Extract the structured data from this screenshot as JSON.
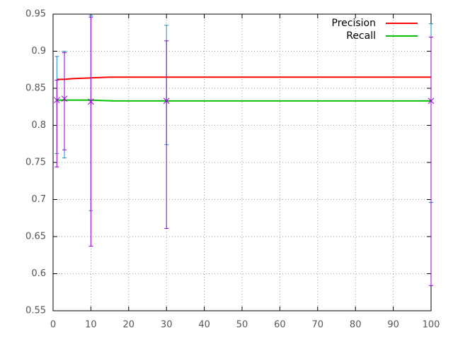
{
  "chart_data": {
    "type": "line",
    "xlim": [
      0,
      100
    ],
    "ylim": [
      0.55,
      0.95
    ],
    "xticks": [
      0,
      10,
      20,
      30,
      40,
      50,
      60,
      70,
      80,
      90,
      100
    ],
    "yticks": [
      0.55,
      0.6,
      0.65,
      0.7,
      0.75,
      0.8,
      0.85,
      0.9,
      0.95
    ],
    "grid": true,
    "legend": "top-right",
    "series": [
      {
        "name": "Precision",
        "color": "#ff0000",
        "x": [
          1,
          3,
          5,
          10,
          15,
          30,
          100
        ],
        "values": [
          0.862,
          0.862,
          0.863,
          0.864,
          0.865,
          0.865,
          0.865
        ],
        "errorbars": {
          "color": "#1e8cc8",
          "x": [
            1,
            3,
            10,
            30,
            100
          ],
          "low": [
            0.762,
            0.756,
            0.685,
            0.774,
            0.696
          ],
          "high": [
            0.893,
            0.9,
            0.948,
            0.935,
            0.937
          ]
        }
      },
      {
        "name": "Recall",
        "color": "#00c000",
        "x": [
          1,
          3,
          10,
          16,
          30,
          100
        ],
        "values": [
          0.834,
          0.834,
          0.834,
          0.833,
          0.833,
          0.833
        ],
        "errorbars": {
          "color": "#9400d3",
          "x": [
            1,
            3,
            10,
            30,
            100
          ],
          "center": [
            0.834,
            0.836,
            0.832,
            0.833,
            0.833
          ],
          "low": [
            0.744,
            0.767,
            0.637,
            0.661,
            0.584
          ],
          "high": [
            0.861,
            0.898,
            0.946,
            0.914,
            0.919
          ]
        }
      }
    ]
  }
}
